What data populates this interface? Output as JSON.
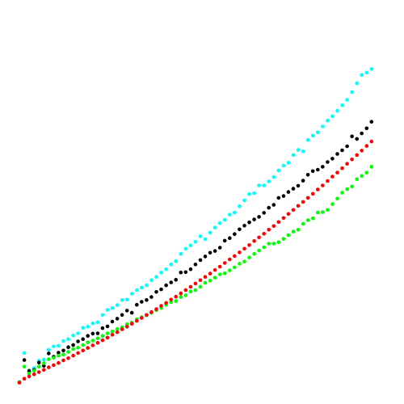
{
  "chart_data": {
    "type": "scatter",
    "grid": false,
    "axes_visible": false,
    "xlim": [
      0,
      75
    ],
    "ylim": [
      0,
      100
    ],
    "x": [
      0,
      1,
      2,
      3,
      4,
      5,
      6,
      7,
      8,
      9,
      10,
      11,
      12,
      13,
      14,
      15,
      16,
      17,
      18,
      19,
      20,
      21,
      22,
      23,
      24,
      25,
      26,
      27,
      28,
      29,
      30,
      31,
      32,
      33,
      34,
      35,
      36,
      37,
      38,
      39,
      40,
      41,
      42,
      43,
      44,
      45,
      46,
      47,
      48,
      49,
      50,
      51,
      52,
      53,
      54,
      55,
      56,
      57,
      58,
      59,
      60,
      61,
      62,
      63,
      64,
      65,
      66,
      67,
      68,
      69,
      70,
      71,
      72
    ],
    "series": [
      {
        "color": "#00ffff",
        "values": [
          0.5,
          8.4,
          3.6,
          4.3,
          6.3,
          6.6,
          9.3,
          10.2,
          10.4,
          11.7,
          12.2,
          13.2,
          13.8,
          15.3,
          15.6,
          16.5,
          16.8,
          18.8,
          20.2,
          20.7,
          21.5,
          22.9,
          23.0,
          24.6,
          25.6,
          26.3,
          26.9,
          28.3,
          29.2,
          30.4,
          31.3,
          32.6,
          33.5,
          35.5,
          36.9,
          37.8,
          38.8,
          40.3,
          39.5,
          41.3,
          42.7,
          43.9,
          44.8,
          46.2,
          46.8,
          48.5,
          50.1,
          51.8,
          52.1,
          54.2,
          54.2,
          55.3,
          56.5,
          58.3,
          59.6,
          60.4,
          62.5,
          63.9,
          63.5,
          66.6,
          67.8,
          68.7,
          70.3,
          71.9,
          73.1,
          74.6,
          76.1,
          77.6,
          79.7,
          82.1,
          84.4,
          85.0,
          86.0
        ]
      },
      {
        "color": "#000000",
        "values": [
          0.4,
          6.5,
          3.5,
          3.8,
          5.8,
          4.9,
          8.3,
          7.4,
          8.5,
          9.1,
          10.0,
          10.6,
          11.6,
          12.2,
          13.1,
          13.7,
          13.8,
          15.2,
          15.7,
          17.0,
          17.8,
          18.8,
          20.0,
          19.4,
          21.6,
          22.4,
          22.9,
          23.7,
          25.1,
          25.8,
          26.9,
          27.7,
          28.4,
          30.4,
          30.5,
          31.3,
          32.6,
          33.8,
          34.8,
          35.8,
          36.3,
          37.2,
          39.1,
          39.8,
          40.9,
          42.2,
          43.2,
          44.1,
          44.9,
          45.6,
          46.7,
          48.1,
          48.9,
          50.8,
          51.3,
          52.4,
          53.3,
          54.1,
          55.5,
          57.1,
          58.1,
          58.5,
          59.3,
          60.6,
          61.5,
          62.8,
          63.8,
          64.9,
          67.6,
          66.9,
          68.4,
          69.8,
          71.6
        ]
      },
      {
        "color": "#00ff00",
        "values": [
          0.4,
          4.7,
          2.8,
          3.6,
          4.7,
          5.6,
          6.7,
          7.1,
          7.7,
          8.0,
          8.7,
          9.5,
          9.9,
          10.6,
          11.3,
          11.8,
          12.4,
          13.1,
          13.8,
          14.3,
          15.0,
          15.4,
          16.3,
          16.7,
          17.6,
          18.2,
          18.7,
          19.4,
          20.1,
          20.7,
          21.6,
          22.3,
          22.6,
          23.7,
          24.2,
          25.2,
          25.6,
          26.5,
          27.6,
          28.2,
          29.0,
          29.9,
          30.2,
          31.0,
          31.8,
          32.8,
          33.4,
          34.5,
          35.5,
          36.4,
          37.3,
          38.3,
          38.3,
          38.7,
          39.6,
          40.6,
          41.6,
          42.1,
          43.7,
          44.7,
          45.2,
          46.8,
          46.9,
          47.5,
          49.1,
          50.6,
          52.2,
          53.2,
          53.9,
          55.9,
          56.8,
          57.7,
          59.3
        ]
      },
      {
        "color": "#ff0000",
        "values": [
          0.3,
          1.4,
          2.0,
          2.6,
          3.2,
          3.8,
          4.5,
          5.1,
          5.7,
          6.4,
          7.0,
          7.7,
          8.4,
          9.1,
          9.8,
          10.5,
          11.2,
          11.9,
          12.6,
          13.4,
          14.1,
          14.9,
          15.6,
          16.4,
          17.2,
          18.0,
          18.8,
          19.6,
          20.4,
          21.3,
          22.1,
          23.0,
          23.8,
          24.7,
          25.6,
          26.5,
          27.4,
          28.3,
          29.2,
          30.1,
          31.1,
          32.0,
          33.0,
          34.0,
          34.9,
          35.9,
          36.9,
          37.9,
          39.0,
          40.0,
          41.0,
          42.1,
          43.1,
          44.2,
          45.3,
          46.4,
          47.5,
          48.6,
          49.7,
          50.8,
          51.9,
          53.1,
          54.2,
          55.4,
          56.6,
          57.7,
          58.9,
          60.1,
          61.3,
          62.5,
          63.7,
          65.0,
          66.2
        ]
      }
    ]
  }
}
